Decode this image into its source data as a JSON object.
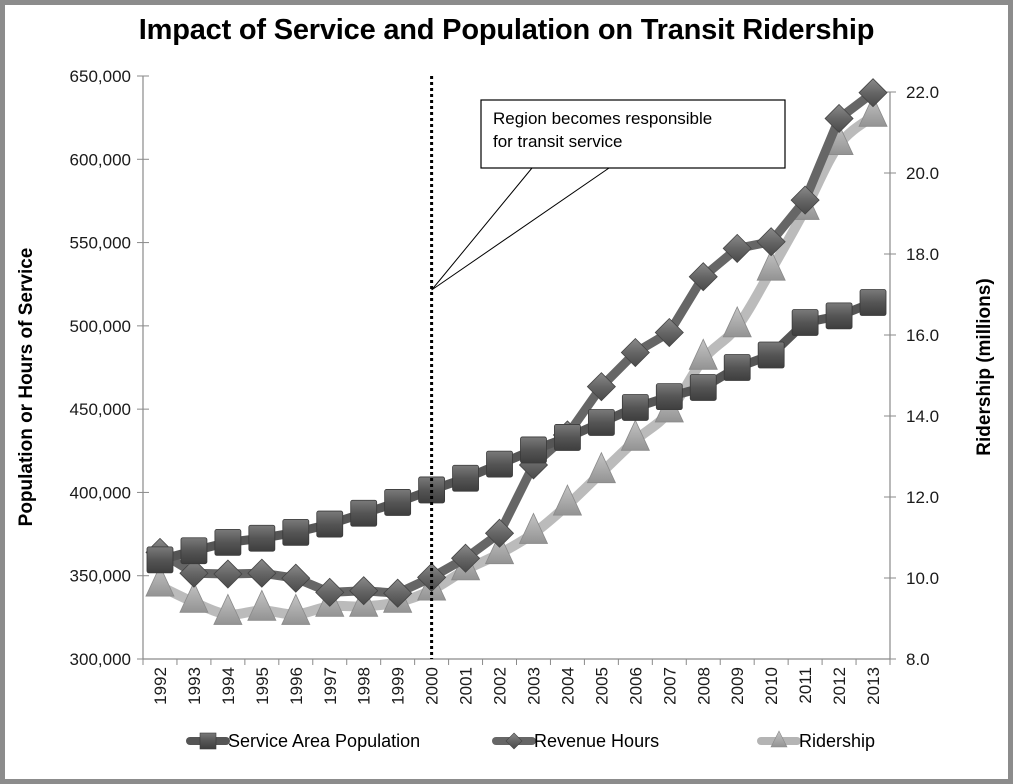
{
  "chart_data": {
    "type": "line",
    "title": "Impact of Service and Population on Transit Ridership",
    "xlabel": "",
    "ylabel": "Population or Hours of Service",
    "y2label": "Ridership (millions)",
    "ylim": [
      300000,
      650000
    ],
    "y2lim": [
      8.0,
      22.0
    ],
    "yticks": [
      "300,000",
      "350,000",
      "400,000",
      "450,000",
      "500,000",
      "550,000",
      "600,000",
      "650,000"
    ],
    "y2ticks": [
      "8.0",
      "10.0",
      "12.0",
      "14.0",
      "16.0",
      "18.0",
      "20.0",
      "22.0"
    ],
    "categories": [
      "1992",
      "1993",
      "1994",
      "1995",
      "1996",
      "1997",
      "1998",
      "1999",
      "2000",
      "2001",
      "2002",
      "2003",
      "2004",
      "2005",
      "2006",
      "2007",
      "2008",
      "2009",
      "2010",
      "2011",
      "2012",
      "2013"
    ],
    "grid": false,
    "legend_position": "bottom",
    "series": [
      {
        "name": "Service Area Population",
        "axis": "left",
        "marker": "square",
        "color": "#5a5a5a",
        "values": [
          359500,
          365000,
          370000,
          372500,
          376000,
          381000,
          387500,
          394000,
          401500,
          408500,
          417000,
          425500,
          433000,
          442000,
          451000,
          457500,
          463000,
          475000,
          482500,
          502000,
          506000,
          514000
        ]
      },
      {
        "name": "Revenue Hours",
        "axis": "left",
        "marker": "diamond",
        "color": "#6e6e6e",
        "values": [
          364000,
          351500,
          351000,
          351500,
          348500,
          340000,
          341000,
          339500,
          349000,
          360500,
          375500,
          416500,
          434500,
          463500,
          484000,
          496000,
          529500,
          546500,
          550500,
          575500,
          624500,
          640000
        ]
      },
      {
        "name": "Ridership",
        "axis": "right",
        "marker": "triangle",
        "color": "#a8a8a8",
        "values": [
          9.8,
          9.4,
          9.1,
          9.2,
          9.1,
          9.3,
          9.3,
          9.4,
          9.7,
          10.2,
          10.6,
          11.1,
          11.8,
          12.6,
          13.4,
          14.1,
          15.4,
          16.2,
          17.6,
          19.1,
          20.7,
          21.4
        ]
      }
    ],
    "annotations": [
      {
        "text_lines": [
          "Region becomes responsible",
          "for transit service"
        ],
        "points_to": "2000",
        "vertical_dotted_line_at": "2000"
      }
    ]
  }
}
